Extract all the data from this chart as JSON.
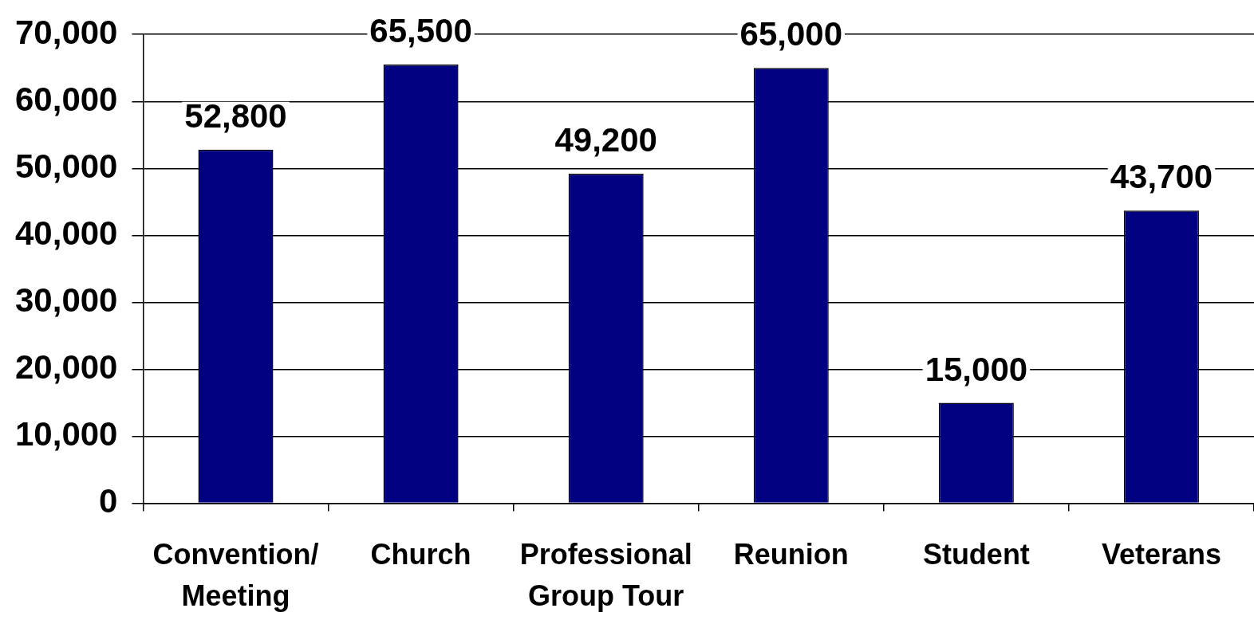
{
  "chart_data": {
    "type": "bar",
    "categories": [
      "Convention/\nMeeting",
      "Church",
      "Professional\nGroup Tour",
      "Reunion",
      "Student",
      "Veterans"
    ],
    "values": [
      52800,
      65500,
      49200,
      65000,
      15000,
      43700
    ],
    "value_labels": [
      "52,800",
      "65,500",
      "49,200",
      "65,000",
      "15,000",
      "43,700"
    ],
    "color": "#000080",
    "ylim": [
      0,
      70000
    ],
    "yticks": [
      {
        "value": 0,
        "label": "0"
      },
      {
        "value": 10000,
        "label": "10,000"
      },
      {
        "value": 20000,
        "label": "20,000"
      },
      {
        "value": 30000,
        "label": "30,000"
      },
      {
        "value": 40000,
        "label": "40,000"
      },
      {
        "value": 50000,
        "label": "50,000"
      },
      {
        "value": 60000,
        "label": "60,000"
      },
      {
        "value": 70000,
        "label": "70,000"
      }
    ],
    "grid": "y"
  }
}
